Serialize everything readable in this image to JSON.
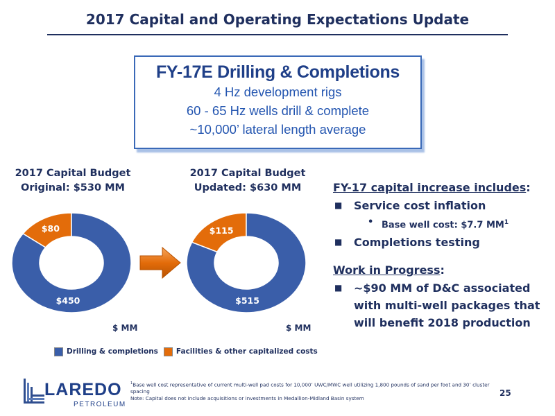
{
  "title": "2017 Capital and Operating Expectations Update",
  "callout": {
    "title": "FY-17E Drilling & Completions",
    "lines": [
      "4 Hz development rigs",
      "60 - 65 Hz wells drill & complete",
      "~10,000’ lateral length average"
    ]
  },
  "chart_data": [
    {
      "type": "pie",
      "title": "2017 Capital Budget",
      "subtitle": "Original: $530 MM",
      "units": "$ MM",
      "categories": [
        "Drilling & completions",
        "Facilities & other capitalized costs"
      ],
      "values": [
        450,
        80
      ],
      "labels": [
        "$450",
        "$80"
      ]
    },
    {
      "type": "pie",
      "title": "2017 Capital Budget",
      "subtitle": "Updated: $630 MM",
      "units": "$ MM",
      "categories": [
        "Drilling & completions",
        "Facilities & other capitalized costs"
      ],
      "values": [
        515,
        115
      ],
      "labels": [
        "$515",
        "$115"
      ]
    }
  ],
  "legend": {
    "items": [
      {
        "label": "Drilling & completions",
        "color": "#3a5ea9"
      },
      {
        "label": "Facilities & other capitalized costs",
        "color": "#e36c0a"
      }
    ]
  },
  "colors": {
    "drilling": "#3a5ea9",
    "facilities": "#e36c0a",
    "arrow": "#e36c0a",
    "text": "#1f2f5e"
  },
  "bullets": {
    "heading1": "FY-17 capital increase includes",
    "b1": "Service cost inflation",
    "sub1": "Base well cost: $7.7 MM",
    "sub1_sup": "1",
    "b2": "Completions testing",
    "heading2": "Work in Progress",
    "b3": "~$90 MM of D&C associated with multi-well packages that will benefit 2018 production"
  },
  "logo": {
    "name": "LAREDO",
    "sub": "PETROLEUM"
  },
  "footnote": {
    "sup": "1",
    "line1": "Base well cost representative of current multi-well pad costs for 10,000’ UWC/MWC well utilizing 1,800 pounds of sand per foot and 30’ cluster spacing",
    "line2": "Note: Capital does not include acquisitions or investments in Medallion-Midland Basin system"
  },
  "page_number": "25"
}
